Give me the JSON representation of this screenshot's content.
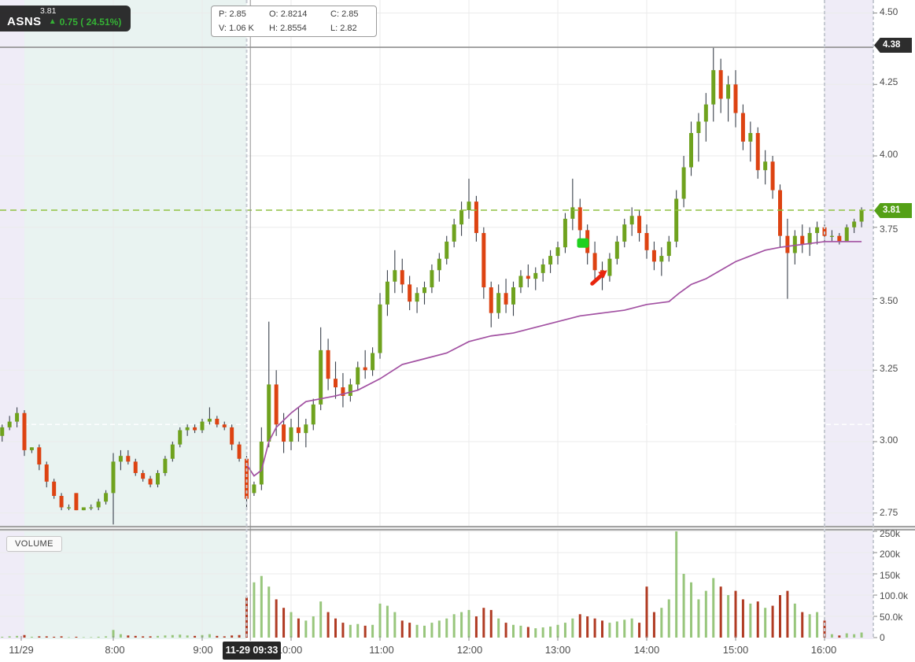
{
  "ticker_panel": {
    "symbol": "ASNS",
    "last_price": "3.81",
    "arrow": "▲",
    "change_text": "0.75 ( 24.51%)"
  },
  "info_box": {
    "items": [
      {
        "label": "P:",
        "value": "2.85"
      },
      {
        "label": "O:",
        "value": "2.8214"
      },
      {
        "label": "C:",
        "value": "2.85"
      },
      {
        "label": "V:",
        "value": "1.06 K"
      },
      {
        "label": "H:",
        "value": "2.8554"
      },
      {
        "label": "L:",
        "value": "2.82"
      }
    ]
  },
  "volume_pane": {
    "label": "VOLUME"
  },
  "price_axis": {
    "ticks": [
      "4.50",
      "4.25",
      "4.00",
      "3.75",
      "3.50",
      "3.25",
      "3.00",
      "2.75"
    ],
    "crosshair_badge": "4.38",
    "last_price_badge": "3.81"
  },
  "volume_axis": {
    "ticks": [
      "250k",
      "200k",
      "150k",
      "100.0k",
      "50.0k",
      "0"
    ]
  },
  "time_axis": {
    "labels": [
      "11/29",
      "8:00",
      "9:00",
      "10:00",
      "11:00",
      "12:00",
      "13:00",
      "14:00",
      "15:00",
      "16:00"
    ],
    "selected_badge": "11-29 09:33"
  },
  "colors": {
    "up": "#6fa21e",
    "down": "#dd4312",
    "wick": "#39404b",
    "vol_up": "#98c67c",
    "vol_down": "#b03b23",
    "vwap": "#a251a2",
    "last_price_line": "#8fc140",
    "last_badge_bg": "#54a016",
    "crosshair_badge_bg": "#2d2d2d",
    "premarket_early_bg": "#efecf7",
    "premarket_bg": "#e9f3f1",
    "afterhours_bg": "#efecf7",
    "grid": "#ebebeb",
    "crosshair": "#8f8f8f",
    "divider": "#c6cad2",
    "prev_close": "#ffffff",
    "marker_buy": "#1fd11f",
    "marker_arrow": "#e8250d",
    "separator": "#a3a3a3"
  },
  "chart_data": {
    "type": "candlestick",
    "symbol": "ASNS",
    "date": "11/29",
    "x_unit": "minutes_of_day",
    "interval_minutes": 5,
    "price_axis_range": [
      2.7,
      4.55
    ],
    "volume_axis_max_k": 250,
    "legend": "VOLUME sub-pane; purple line = VWAP",
    "candle_fields": [
      "time_min",
      "open",
      "high",
      "low",
      "close",
      "volume_k"
    ],
    "sessions": [
      {
        "name": "premarket-early",
        "start": 403,
        "end": 420,
        "color_key": "premarket_early_bg"
      },
      {
        "name": "premarket",
        "start": 420,
        "end": 570,
        "color_key": "premarket_bg"
      },
      {
        "name": "afterhours",
        "start": 960,
        "end": 993,
        "color_key": "afterhours_bg"
      }
    ],
    "lines": {
      "last_price": 3.81,
      "prev_close": 3.06,
      "crosshair_price": 4.38,
      "crosshair_time": 572.5,
      "session_open": 570,
      "session_close": 960
    },
    "gridlines": {
      "h_prices": [
        4.5,
        4.25,
        4.0,
        3.75,
        3.5,
        3.25,
        3.0,
        2.75
      ],
      "v_times": [
        480,
        540,
        600,
        660,
        720,
        780,
        840,
        900,
        960
      ],
      "volume_k": [
        50,
        100,
        150,
        200,
        250
      ]
    },
    "markers": [
      {
        "type": "buy-square",
        "time": 797,
        "price": 3.695,
        "color_key": "marker_buy"
      },
      {
        "type": "arrow-up-right",
        "time": 808,
        "price": 3.575,
        "color_key": "marker_arrow"
      }
    ],
    "candles": [
      [
        405,
        3.02,
        3.06,
        3.0,
        3.05,
        2
      ],
      [
        410,
        3.05,
        3.09,
        3.04,
        3.07,
        3
      ],
      [
        415,
        3.07,
        3.12,
        3.05,
        3.1,
        4
      ],
      [
        420,
        3.1,
        3.11,
        2.95,
        2.97,
        6
      ],
      [
        425,
        2.97,
        2.98,
        2.96,
        2.98,
        2
      ],
      [
        430,
        2.98,
        2.99,
        2.9,
        2.92,
        3
      ],
      [
        435,
        2.92,
        2.93,
        2.84,
        2.86,
        3
      ],
      [
        440,
        2.86,
        2.87,
        2.8,
        2.81,
        2
      ],
      [
        445,
        2.81,
        2.82,
        2.76,
        2.77,
        3
      ],
      [
        450,
        2.77,
        2.78,
        2.76,
        2.77,
        1
      ],
      [
        455,
        2.82,
        2.82,
        2.76,
        2.76,
        2
      ],
      [
        460,
        2.76,
        2.77,
        2.76,
        2.77,
        1
      ],
      [
        465,
        2.77,
        2.78,
        2.76,
        2.77,
        1
      ],
      [
        470,
        2.77,
        2.8,
        2.76,
        2.79,
        2
      ],
      [
        475,
        2.79,
        2.83,
        2.78,
        2.82,
        3
      ],
      [
        480,
        2.82,
        2.96,
        2.71,
        2.93,
        18
      ],
      [
        485,
        2.93,
        2.97,
        2.9,
        2.95,
        8
      ],
      [
        490,
        2.95,
        2.97,
        2.92,
        2.93,
        5
      ],
      [
        495,
        2.93,
        2.94,
        2.88,
        2.89,
        4
      ],
      [
        500,
        2.89,
        2.9,
        2.86,
        2.87,
        3
      ],
      [
        505,
        2.87,
        2.88,
        2.84,
        2.85,
        3
      ],
      [
        510,
        2.85,
        2.9,
        2.84,
        2.89,
        4
      ],
      [
        515,
        2.89,
        2.95,
        2.88,
        2.94,
        5
      ],
      [
        520,
        2.94,
        3.0,
        2.93,
        2.99,
        6
      ],
      [
        525,
        2.99,
        3.05,
        2.98,
        3.04,
        7
      ],
      [
        530,
        3.04,
        3.06,
        3.02,
        3.05,
        5
      ],
      [
        535,
        3.05,
        3.06,
        3.03,
        3.04,
        4
      ],
      [
        540,
        3.04,
        3.08,
        3.03,
        3.07,
        6
      ],
      [
        545,
        3.07,
        3.12,
        3.06,
        3.08,
        8
      ],
      [
        550,
        3.08,
        3.09,
        3.05,
        3.06,
        4
      ],
      [
        555,
        3.06,
        3.07,
        3.04,
        3.05,
        3
      ],
      [
        560,
        3.05,
        3.06,
        2.97,
        2.99,
        5
      ],
      [
        565,
        2.99,
        3.0,
        2.93,
        2.94,
        6
      ],
      [
        570,
        2.94,
        2.95,
        2.76,
        2.8,
        95
      ],
      [
        575,
        2.82,
        2.86,
        2.81,
        2.85,
        130
      ],
      [
        580,
        2.85,
        3.05,
        2.83,
        3.0,
        145
      ],
      [
        585,
        3.0,
        3.42,
        2.98,
        3.2,
        120
      ],
      [
        590,
        3.2,
        3.25,
        3.02,
        3.06,
        90
      ],
      [
        595,
        3.06,
        3.1,
        2.96,
        3.0,
        70
      ],
      [
        600,
        3.0,
        3.08,
        2.97,
        3.05,
        60
      ],
      [
        605,
        3.05,
        3.12,
        3.0,
        3.03,
        45
      ],
      [
        610,
        3.03,
        3.08,
        2.98,
        3.06,
        40
      ],
      [
        615,
        3.06,
        3.15,
        3.04,
        3.13,
        50
      ],
      [
        620,
        3.13,
        3.4,
        3.11,
        3.32,
        85
      ],
      [
        625,
        3.32,
        3.36,
        3.18,
        3.22,
        60
      ],
      [
        630,
        3.22,
        3.28,
        3.15,
        3.19,
        45
      ],
      [
        635,
        3.19,
        3.24,
        3.12,
        3.16,
        35
      ],
      [
        640,
        3.16,
        3.22,
        3.14,
        3.2,
        30
      ],
      [
        645,
        3.2,
        3.28,
        3.18,
        3.26,
        32
      ],
      [
        650,
        3.26,
        3.32,
        3.22,
        3.25,
        28
      ],
      [
        655,
        3.25,
        3.33,
        3.23,
        3.31,
        30
      ],
      [
        660,
        3.31,
        3.52,
        3.29,
        3.48,
        80
      ],
      [
        665,
        3.48,
        3.6,
        3.44,
        3.56,
        75
      ],
      [
        670,
        3.56,
        3.67,
        3.52,
        3.6,
        60
      ],
      [
        675,
        3.6,
        3.64,
        3.52,
        3.55,
        40
      ],
      [
        680,
        3.55,
        3.58,
        3.46,
        3.49,
        35
      ],
      [
        685,
        3.49,
        3.54,
        3.45,
        3.52,
        30
      ],
      [
        690,
        3.52,
        3.56,
        3.48,
        3.54,
        28
      ],
      [
        695,
        3.54,
        3.62,
        3.52,
        3.6,
        35
      ],
      [
        700,
        3.6,
        3.66,
        3.56,
        3.64,
        40
      ],
      [
        705,
        3.64,
        3.72,
        3.62,
        3.7,
        45
      ],
      [
        710,
        3.7,
        3.78,
        3.68,
        3.76,
        55
      ],
      [
        715,
        3.76,
        3.84,
        3.72,
        3.81,
        60
      ],
      [
        720,
        3.81,
        3.92,
        3.78,
        3.84,
        65
      ],
      [
        725,
        3.84,
        3.86,
        3.7,
        3.73,
        50
      ],
      [
        730,
        3.73,
        3.75,
        3.5,
        3.54,
        70
      ],
      [
        735,
        3.54,
        3.56,
        3.4,
        3.45,
        65
      ],
      [
        740,
        3.45,
        3.55,
        3.43,
        3.52,
        45
      ],
      [
        745,
        3.52,
        3.57,
        3.45,
        3.48,
        35
      ],
      [
        750,
        3.48,
        3.56,
        3.44,
        3.54,
        30
      ],
      [
        755,
        3.54,
        3.6,
        3.52,
        3.58,
        28
      ],
      [
        760,
        3.58,
        3.62,
        3.54,
        3.57,
        25
      ],
      [
        765,
        3.57,
        3.61,
        3.53,
        3.59,
        22
      ],
      [
        770,
        3.59,
        3.64,
        3.56,
        3.62,
        24
      ],
      [
        775,
        3.62,
        3.67,
        3.59,
        3.65,
        26
      ],
      [
        780,
        3.65,
        3.7,
        3.62,
        3.68,
        30
      ],
      [
        785,
        3.68,
        3.8,
        3.66,
        3.78,
        35
      ],
      [
        790,
        3.78,
        3.92,
        3.74,
        3.82,
        45
      ],
      [
        795,
        3.82,
        3.85,
        3.7,
        3.74,
        55
      ],
      [
        800,
        3.74,
        3.76,
        3.62,
        3.66,
        50
      ],
      [
        805,
        3.66,
        3.7,
        3.56,
        3.6,
        45
      ],
      [
        810,
        3.6,
        3.63,
        3.53,
        3.58,
        40
      ],
      [
        815,
        3.58,
        3.66,
        3.56,
        3.64,
        35
      ],
      [
        820,
        3.64,
        3.72,
        3.62,
        3.7,
        38
      ],
      [
        825,
        3.7,
        3.78,
        3.68,
        3.76,
        42
      ],
      [
        830,
        3.76,
        3.82,
        3.72,
        3.79,
        45
      ],
      [
        835,
        3.79,
        3.81,
        3.7,
        3.73,
        35
      ],
      [
        840,
        3.73,
        3.76,
        3.64,
        3.67,
        120
      ],
      [
        845,
        3.67,
        3.7,
        3.6,
        3.63,
        60
      ],
      [
        850,
        3.63,
        3.68,
        3.58,
        3.65,
        70
      ],
      [
        855,
        3.65,
        3.72,
        3.63,
        3.7,
        90
      ],
      [
        860,
        3.7,
        3.88,
        3.68,
        3.85,
        250
      ],
      [
        865,
        3.85,
        4.0,
        3.82,
        3.96,
        150
      ],
      [
        870,
        3.96,
        4.12,
        3.93,
        4.08,
        130
      ],
      [
        875,
        4.08,
        4.15,
        3.98,
        4.12,
        90
      ],
      [
        880,
        4.12,
        4.22,
        4.05,
        4.18,
        110
      ],
      [
        885,
        4.18,
        4.38,
        4.12,
        4.3,
        140
      ],
      [
        890,
        4.3,
        4.34,
        4.15,
        4.2,
        120
      ],
      [
        895,
        4.2,
        4.28,
        4.12,
        4.25,
        100
      ],
      [
        900,
        4.25,
        4.3,
        4.1,
        4.15,
        110
      ],
      [
        905,
        4.15,
        4.18,
        4.02,
        4.05,
        90
      ],
      [
        910,
        4.05,
        4.12,
        3.98,
        4.08,
        80
      ],
      [
        915,
        4.08,
        4.1,
        3.92,
        3.95,
        85
      ],
      [
        920,
        3.95,
        4.02,
        3.9,
        3.98,
        70
      ],
      [
        925,
        3.98,
        4.0,
        3.85,
        3.88,
        75
      ],
      [
        930,
        3.88,
        3.9,
        3.68,
        3.72,
        100
      ],
      [
        935,
        3.72,
        3.78,
        3.5,
        3.66,
        110
      ],
      [
        940,
        3.66,
        3.74,
        3.62,
        3.72,
        80
      ],
      [
        945,
        3.72,
        3.76,
        3.66,
        3.69,
        60
      ],
      [
        950,
        3.69,
        3.75,
        3.65,
        3.73,
        55
      ],
      [
        955,
        3.73,
        3.77,
        3.69,
        3.75,
        60
      ],
      [
        960,
        3.75,
        3.76,
        3.7,
        3.72,
        40
      ],
      [
        965,
        3.72,
        3.74,
        3.7,
        3.72,
        8
      ],
      [
        970,
        3.72,
        3.73,
        3.69,
        3.7,
        5
      ],
      [
        975,
        3.7,
        3.76,
        3.7,
        3.75,
        10
      ],
      [
        980,
        3.75,
        3.78,
        3.73,
        3.77,
        8
      ],
      [
        985,
        3.77,
        3.82,
        3.75,
        3.81,
        12
      ]
    ],
    "vwap": [
      [
        570,
        2.92
      ],
      [
        575,
        2.88
      ],
      [
        580,
        2.9
      ],
      [
        585,
        3.0
      ],
      [
        590,
        3.05
      ],
      [
        600,
        3.1
      ],
      [
        610,
        3.14
      ],
      [
        620,
        3.15
      ],
      [
        630,
        3.16
      ],
      [
        645,
        3.18
      ],
      [
        660,
        3.22
      ],
      [
        675,
        3.27
      ],
      [
        690,
        3.29
      ],
      [
        705,
        3.31
      ],
      [
        720,
        3.35
      ],
      [
        735,
        3.37
      ],
      [
        750,
        3.38
      ],
      [
        765,
        3.4
      ],
      [
        780,
        3.42
      ],
      [
        795,
        3.44
      ],
      [
        810,
        3.45
      ],
      [
        825,
        3.46
      ],
      [
        840,
        3.48
      ],
      [
        855,
        3.49
      ],
      [
        862,
        3.52
      ],
      [
        870,
        3.55
      ],
      [
        880,
        3.57
      ],
      [
        890,
        3.6
      ],
      [
        900,
        3.63
      ],
      [
        910,
        3.65
      ],
      [
        920,
        3.67
      ],
      [
        930,
        3.68
      ],
      [
        945,
        3.69
      ],
      [
        960,
        3.7
      ],
      [
        985,
        3.7
      ]
    ]
  }
}
